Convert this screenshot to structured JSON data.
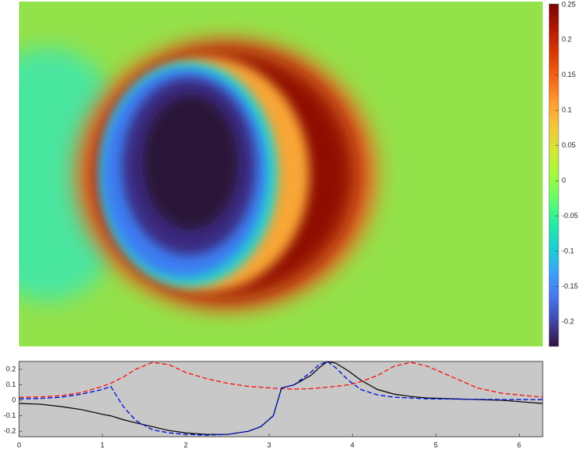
{
  "chart_data": [
    {
      "type": "heatmap",
      "colormap": [
        "#30123b",
        "#4145ab",
        "#4675ed",
        "#39a2fc",
        "#1bcfd4",
        "#24eca6",
        "#61fc6c",
        "#a4fc3b",
        "#d1e834",
        "#f3c63a",
        "#fe9b2d",
        "#f36315",
        "#d93806",
        "#b11901",
        "#7a0402"
      ],
      "clim": [
        -0.235,
        0.251
      ],
      "cticks": [
        -0.2,
        -0.15,
        -0.1,
        -0.05,
        0,
        0.05,
        0.1,
        0.15,
        0.2,
        0.25
      ]
    },
    {
      "type": "line",
      "x": [
        0,
        0.25,
        0.5,
        0.75,
        1.0,
        1.1,
        1.25,
        1.4,
        1.6,
        1.8,
        2.0,
        2.25,
        2.5,
        2.75,
        2.9,
        3.05,
        3.15,
        3.3,
        3.5,
        3.6,
        3.7,
        3.8,
        3.95,
        4.1,
        4.3,
        4.5,
        4.7,
        4.9,
        5.2,
        5.5,
        5.8,
        6.28
      ],
      "series": [
        {
          "color": "#000000",
          "linestyle": "solid",
          "values": [
            -0.02,
            -0.025,
            -0.04,
            -0.06,
            -0.09,
            -0.1,
            -0.125,
            -0.145,
            -0.17,
            -0.195,
            -0.21,
            -0.22,
            -0.22,
            -0.2,
            -0.17,
            -0.1,
            0.08,
            0.1,
            0.16,
            0.21,
            0.25,
            0.24,
            0.19,
            0.13,
            0.07,
            0.04,
            0.025,
            0.015,
            0.01,
            0.005,
            0,
            -0.02
          ]
        },
        {
          "color": "#ff0000",
          "linestyle": "dashed",
          "values": [
            0.02,
            0.022,
            0.03,
            0.05,
            0.09,
            0.11,
            0.15,
            0.2,
            0.245,
            0.23,
            0.18,
            0.14,
            0.11,
            0.09,
            0.085,
            0.078,
            0.075,
            0.072,
            0.075,
            0.08,
            0.085,
            0.09,
            0.1,
            0.12,
            0.16,
            0.22,
            0.245,
            0.22,
            0.15,
            0.08,
            0.045,
            0.02
          ]
        },
        {
          "color": "#00b000",
          "linestyle": "dashed",
          "values": [
            0.01,
            0.012,
            0.02,
            0.04,
            0.07,
            0.09,
            -0.04,
            -0.13,
            -0.19,
            -0.21,
            -0.22,
            -0.225,
            -0.22,
            -0.2,
            -0.17,
            -0.1,
            0.08,
            0.1,
            0.18,
            0.23,
            0.25,
            0.21,
            0.13,
            0.07,
            0.035,
            0.02,
            0.015,
            0.01,
            0.008,
            0.006,
            0.005,
            0.005
          ]
        },
        {
          "color": "#0000ff",
          "linestyle": "dashed",
          "values": [
            0.01,
            0.012,
            0.02,
            0.04,
            0.07,
            0.09,
            -0.04,
            -0.13,
            -0.19,
            -0.21,
            -0.22,
            -0.225,
            -0.22,
            -0.2,
            -0.17,
            -0.1,
            0.08,
            0.1,
            0.18,
            0.23,
            0.25,
            0.21,
            0.13,
            0.07,
            0.035,
            0.02,
            0.015,
            0.01,
            0.008,
            0.006,
            0.005,
            0.005
          ]
        }
      ],
      "xlim": [
        0,
        6.283
      ],
      "xticks": [
        0,
        1,
        2,
        3,
        4,
        5,
        6
      ],
      "ylim": [
        -0.235,
        0.251
      ],
      "yticks": [
        -0.2,
        -0.1,
        0,
        0.1,
        0.2
      ],
      "background": "#c8c8c8"
    }
  ]
}
